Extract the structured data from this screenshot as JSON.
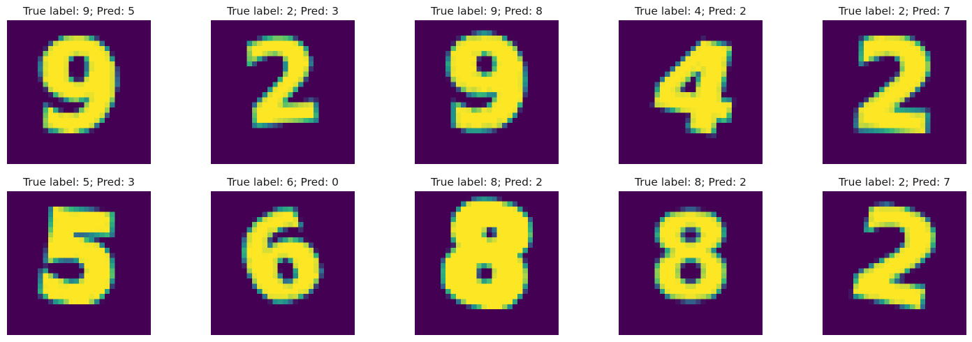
{
  "panels": [
    {
      "title": "True label: 9; Pred: 5",
      "true_label": 9,
      "pred": 5,
      "glyph": "9"
    },
    {
      "title": "True label: 2; Pred: 3",
      "true_label": 2,
      "pred": 3,
      "glyph": "2"
    },
    {
      "title": "True label: 9; Pred: 8",
      "true_label": 9,
      "pred": 8,
      "glyph": "9"
    },
    {
      "title": "True label: 4; Pred: 2",
      "true_label": 4,
      "pred": 2,
      "glyph": "4"
    },
    {
      "title": "True label: 2; Pred: 7",
      "true_label": 2,
      "pred": 7,
      "glyph": "2"
    },
    {
      "title": "True label: 5; Pred: 3",
      "true_label": 5,
      "pred": 3,
      "glyph": "5"
    },
    {
      "title": "True label: 6; Pred: 0",
      "true_label": 6,
      "pred": 0,
      "glyph": "6"
    },
    {
      "title": "True label: 8; Pred: 2",
      "true_label": 8,
      "pred": 2,
      "glyph": "8"
    },
    {
      "title": "True label: 8; Pred: 2",
      "true_label": 8,
      "pred": 2,
      "glyph": "8"
    },
    {
      "title": "True label: 2; Pred: 7",
      "true_label": 2,
      "pred": 7,
      "glyph": "2"
    }
  ],
  "colors": {
    "background": "#440154",
    "low": "#31688e",
    "mid": "#21918c",
    "high": "#35b779",
    "peak": "#fde725"
  }
}
